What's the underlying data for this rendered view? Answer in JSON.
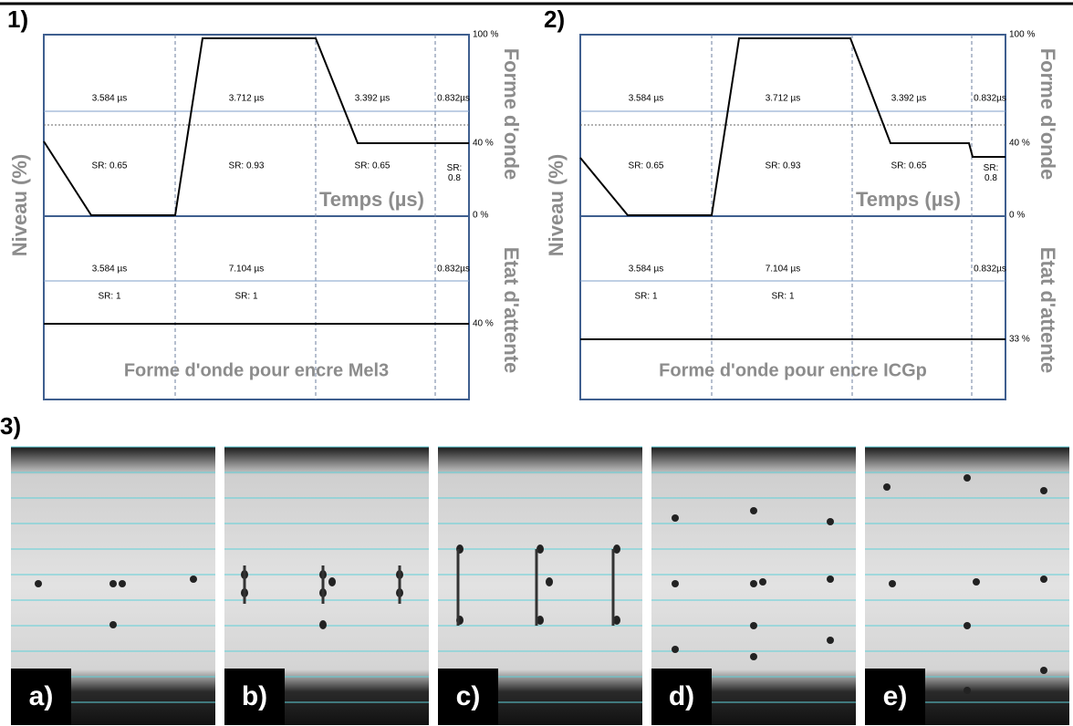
{
  "waveforms": [
    {
      "number": "1)",
      "y_axis_label": "Niveau (%)",
      "upper_label": "Forme d'onde",
      "lower_label": "Etat d'attente",
      "time_label": "Temps (µs)",
      "caption": "Forme d'onde pour encre Mel3",
      "upper": {
        "durations": [
          "3.584 µs",
          "3.712 µs",
          "3.392 µs",
          "0.832µs"
        ],
        "slew_rates": [
          "SR: 0.65",
          "SR: 0.93",
          "SR: 0.65",
          "SR: 0.8"
        ],
        "levels": [
          "100 %",
          "40 %",
          "0 %"
        ]
      },
      "lower": {
        "durations": [
          "3.584 µs",
          "7.104 µs",
          "0.832µs"
        ],
        "slew_rates": [
          "SR: 1",
          "SR: 1"
        ],
        "level": "40 %"
      }
    },
    {
      "number": "2)",
      "y_axis_label": "Niveau (%)",
      "upper_label": "Forme d'onde",
      "lower_label": "Etat d'attente",
      "time_label": "Temps (µs)",
      "caption": "Forme d'onde pour encre ICGp",
      "upper": {
        "durations": [
          "3.584 µs",
          "3.712 µs",
          "3.392 µs",
          "0.832µs"
        ],
        "slew_rates": [
          "SR: 0.65",
          "SR: 0.93",
          "SR: 0.65",
          "SR: 0.8"
        ],
        "levels": [
          "100 %",
          "40 %",
          "0 %"
        ]
      },
      "lower": {
        "durations": [
          "3.584 µs",
          "7.104 µs",
          "0.832µs"
        ],
        "slew_rates": [
          "SR: 1",
          "SR: 1"
        ],
        "level": "33 %"
      }
    }
  ],
  "photos": {
    "number": "3)",
    "labels": [
      "a)",
      "b)",
      "c)",
      "d)",
      "e)"
    ]
  }
}
